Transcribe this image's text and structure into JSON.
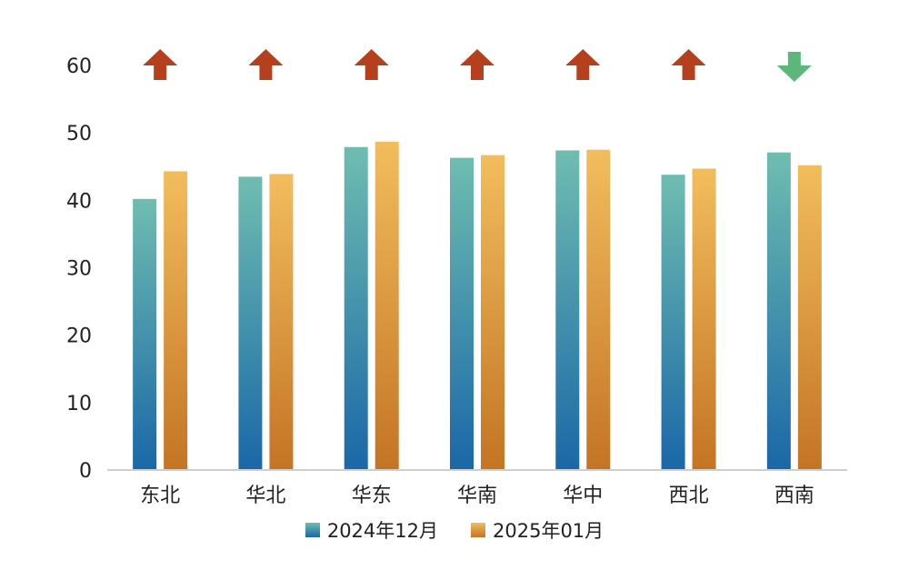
{
  "chart_data": {
    "type": "bar",
    "categories": [
      "东北",
      "华北",
      "华东",
      "华南",
      "华中",
      "西北",
      "西南"
    ],
    "series": [
      {
        "name": "2024年12月",
        "values": [
          40.2,
          43.5,
          47.9,
          46.3,
          47.4,
          43.8,
          47.1
        ],
        "color_top": "#6fbdb0",
        "color_bottom": "#1a67a8"
      },
      {
        "name": "2025年01月",
        "values": [
          44.3,
          43.9,
          48.7,
          46.7,
          47.5,
          44.7,
          45.2
        ],
        "color_top": "#f2bd5d",
        "color_bottom": "#c47424"
      }
    ],
    "trend": [
      "up",
      "up",
      "up",
      "up",
      "up",
      "up",
      "down"
    ],
    "trend_colors": {
      "up": "#b5401e",
      "down": "#5cb87a"
    },
    "yticks": [
      0,
      10,
      20,
      30,
      40,
      50,
      60
    ],
    "ylim": [
      0,
      60
    ],
    "grid": false,
    "legend_position": "bottom"
  }
}
